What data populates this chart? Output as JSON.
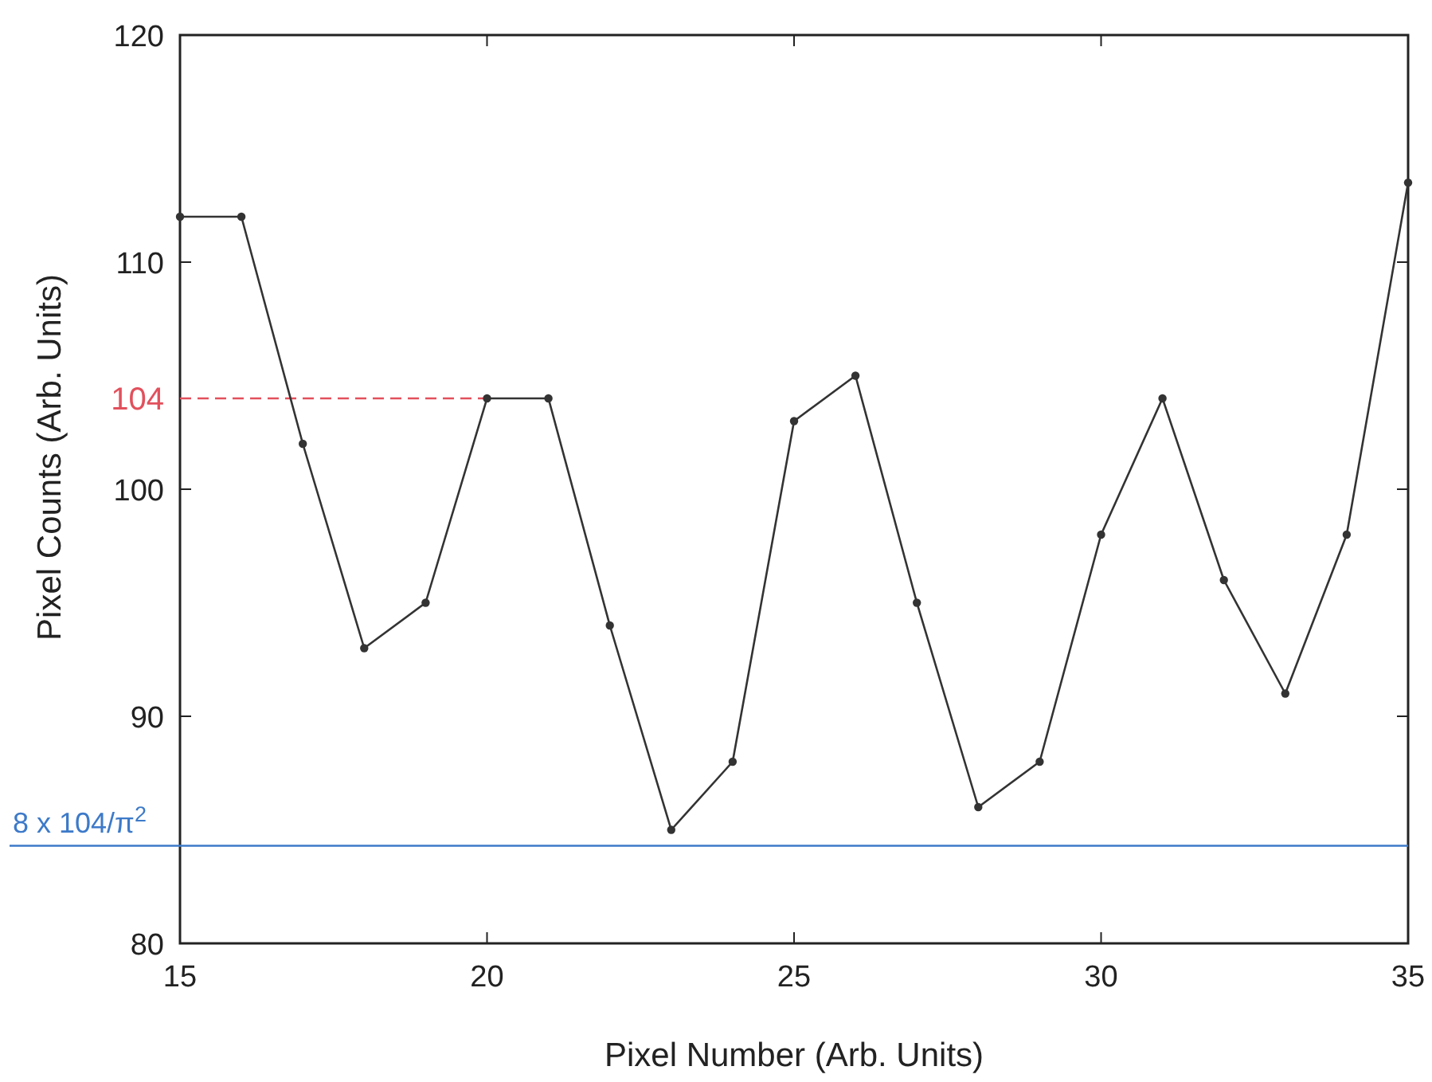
{
  "chart_data": {
    "type": "line",
    "xlabel": "Pixel Number (Arb. Units)",
    "ylabel": "Pixel Counts (Arb. Units)",
    "x": [
      15,
      16,
      17,
      18,
      19,
      20,
      21,
      22,
      23,
      24,
      25,
      26,
      27,
      28,
      29,
      30,
      31,
      32,
      33,
      34,
      35
    ],
    "series": [
      {
        "color": "#333333",
        "values": [
          112,
          112,
          102,
          93,
          95,
          104,
          104,
          94,
          85,
          88,
          103,
          105,
          95,
          86,
          88,
          98,
          104,
          96,
          91,
          98,
          113.5
        ]
      }
    ],
    "xlim": [
      15,
      35
    ],
    "xticks": [
      15,
      20,
      25,
      30,
      35
    ],
    "ylim": [
      80,
      120
    ],
    "yticks": [
      80,
      90,
      100,
      110,
      120
    ],
    "marker": "circle",
    "line_style": "solid",
    "grid": false,
    "ref_lines": [
      {
        "axis": "y",
        "value": 104,
        "label": "104",
        "color": "#e2505c",
        "line_style": "dashed"
      },
      {
        "axis": "y",
        "value": 84.3,
        "label": "8 x 104/π$^{2}$",
        "color": "#3d7ac9",
        "line_style": "solid"
      }
    ]
  }
}
